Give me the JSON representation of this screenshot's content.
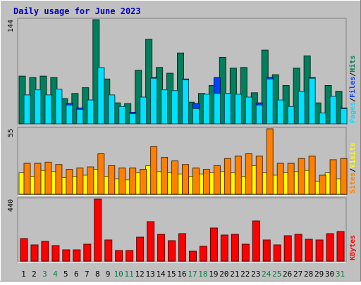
{
  "title": "Daily usage for June 2023",
  "colors": {
    "background": "#C0C0C0",
    "hits": "#00805C",
    "files": "#0040FF",
    "pages": "#00E0FF",
    "visits": "#FFFF00",
    "sites": "#FF8000",
    "kbytes": "#FF0000"
  },
  "chart_data": [
    {
      "type": "bar",
      "name": "hits-files-pages",
      "scale_label": "144",
      "ylim": [
        0,
        144
      ],
      "legend": [
        "Pages",
        "Files",
        "Hits"
      ],
      "categories": [
        "1",
        "2",
        "3",
        "4",
        "5",
        "6",
        "7",
        "8",
        "9",
        "10",
        "11",
        "12",
        "13",
        "14",
        "15",
        "16",
        "17",
        "18",
        "19",
        "20",
        "21",
        "22",
        "23",
        "24",
        "25",
        "26",
        "27",
        "28",
        "29",
        "30",
        "31"
      ],
      "series": [
        {
          "name": "Hits",
          "values": [
            66,
            64,
            66,
            64,
            35,
            42,
            50,
            144,
            62,
            29,
            28,
            74,
            117,
            78,
            70,
            98,
            30,
            42,
            53,
            92,
            77,
            78,
            43,
            102,
            68,
            53,
            77,
            94,
            29,
            53,
            45
          ]
        },
        {
          "name": "Files",
          "values": [
            40,
            45,
            38,
            45,
            28,
            22,
            33,
            76,
            37,
            20,
            16,
            37,
            64,
            45,
            40,
            62,
            28,
            40,
            64,
            42,
            41,
            37,
            29,
            64,
            32,
            22,
            45,
            64,
            15,
            38,
            22
          ]
        },
        {
          "name": "Pages",
          "values": [
            40,
            47,
            40,
            48,
            26,
            20,
            33,
            78,
            40,
            24,
            14,
            37,
            63,
            47,
            46,
            61,
            21,
            41,
            42,
            42,
            41,
            37,
            26,
            62,
            33,
            24,
            45,
            63,
            15,
            38,
            21
          ]
        }
      ]
    },
    {
      "type": "bar",
      "name": "visits-sites",
      "scale_label": "55",
      "ylim": [
        0,
        55
      ],
      "legend": [
        "Sites",
        "Visits"
      ],
      "categories": [
        "1",
        "2",
        "3",
        "4",
        "5",
        "6",
        "7",
        "8",
        "9",
        "10",
        "11",
        "12",
        "13",
        "14",
        "15",
        "16",
        "17",
        "18",
        "19",
        "20",
        "21",
        "22",
        "23",
        "24",
        "25",
        "26",
        "27",
        "28",
        "29",
        "30",
        "31"
      ],
      "series": [
        {
          "name": "Visits",
          "values": [
            18,
            15,
            20,
            19,
            14,
            15,
            16,
            21,
            15,
            13,
            12,
            18,
            24,
            19,
            18,
            17,
            15,
            17,
            18,
            19,
            18,
            15,
            24,
            18,
            16,
            18,
            19,
            20,
            11,
            18,
            13
          ]
        },
        {
          "name": "Sites",
          "values": [
            26,
            26,
            27,
            25,
            21,
            22,
            23,
            34,
            24,
            22,
            22,
            21,
            40,
            31,
            28,
            25,
            22,
            21,
            24,
            30,
            32,
            34,
            32,
            55,
            26,
            26,
            30,
            32,
            16,
            29,
            30
          ]
        }
      ]
    },
    {
      "type": "bar",
      "name": "kbytes",
      "scale_label": "440",
      "ylim": [
        0,
        440
      ],
      "legend": [
        "KBytes"
      ],
      "categories": [
        "1",
        "2",
        "3",
        "4",
        "5",
        "6",
        "7",
        "8",
        "9",
        "10",
        "11",
        "12",
        "13",
        "14",
        "15",
        "16",
        "17",
        "18",
        "19",
        "20",
        "21",
        "22",
        "23",
        "24",
        "25",
        "26",
        "27",
        "28",
        "29",
        "30",
        "31"
      ],
      "series": [
        {
          "name": "KBytes",
          "values": [
            160,
            115,
            140,
            110,
            80,
            80,
            120,
            440,
            150,
            75,
            75,
            170,
            280,
            190,
            145,
            195,
            70,
            105,
            235,
            185,
            190,
            120,
            285,
            150,
            115,
            180,
            190,
            155,
            150,
            195,
            210
          ]
        }
      ]
    }
  ],
  "day_labels": [
    {
      "text": "1",
      "color": "#000000"
    },
    {
      "text": "2",
      "color": "#000000"
    },
    {
      "text": "3",
      "color": "#008040"
    },
    {
      "text": "4",
      "color": "#008040"
    },
    {
      "text": "5",
      "color": "#000000"
    },
    {
      "text": "6",
      "color": "#000000"
    },
    {
      "text": "7",
      "color": "#000000"
    },
    {
      "text": "8",
      "color": "#000000"
    },
    {
      "text": "9",
      "color": "#000000"
    },
    {
      "text": "10",
      "color": "#008040"
    },
    {
      "text": "11",
      "color": "#008040"
    },
    {
      "text": "12",
      "color": "#000000"
    },
    {
      "text": "13",
      "color": "#000000"
    },
    {
      "text": "14",
      "color": "#000000"
    },
    {
      "text": "15",
      "color": "#000000"
    },
    {
      "text": "16",
      "color": "#000000"
    },
    {
      "text": "17",
      "color": "#008040"
    },
    {
      "text": "18",
      "color": "#008040"
    },
    {
      "text": "19",
      "color": "#000000"
    },
    {
      "text": "20",
      "color": "#000000"
    },
    {
      "text": "21",
      "color": "#000000"
    },
    {
      "text": "22",
      "color": "#000000"
    },
    {
      "text": "23",
      "color": "#000000"
    },
    {
      "text": "24",
      "color": "#008040"
    },
    {
      "text": "25",
      "color": "#008040"
    },
    {
      "text": "26",
      "color": "#000000"
    },
    {
      "text": "27",
      "color": "#000000"
    },
    {
      "text": "28",
      "color": "#000000"
    },
    {
      "text": "29",
      "color": "#000000"
    },
    {
      "text": "30",
      "color": "#000000"
    },
    {
      "text": "31",
      "color": "#008040"
    }
  ]
}
